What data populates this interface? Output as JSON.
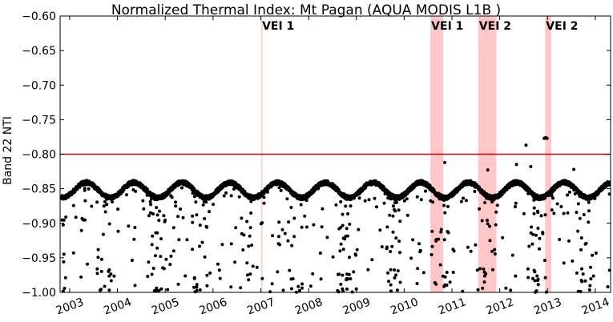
{
  "chart_data": {
    "type": "scatter",
    "title": "Normalized Thermal Index: Mt Pagan (AQUA MODIS L1B )",
    "xlabel": "",
    "ylabel": "Band 22 NTI",
    "xlim": [
      2002.8,
      2014.32
    ],
    "ylim": [
      -1.0,
      -0.6
    ],
    "x_ticks": [
      2003,
      2004,
      2005,
      2006,
      2007,
      2008,
      2009,
      2010,
      2011,
      2012,
      2013,
      2014
    ],
    "x_tick_labels": [
      "2003",
      "2004",
      "2005",
      "2006",
      "2007",
      "2008",
      "2009",
      "2010",
      "2011",
      "2012",
      "2013",
      "2014"
    ],
    "y_ticks": [
      -1.0,
      -0.95,
      -0.9,
      -0.85,
      -0.8,
      -0.75,
      -0.7,
      -0.65,
      -0.6
    ],
    "y_tick_labels": [
      "−1.00",
      "−0.95",
      "−0.90",
      "−0.85",
      "−0.80",
      "−0.75",
      "−0.70",
      "−0.65",
      "−0.60"
    ],
    "threshold": {
      "value": -0.8,
      "color": "#cc0000"
    },
    "eruptions": [
      {
        "label": "VEI 1",
        "start": 2007.01,
        "end": 2007.03
      },
      {
        "label": "VEI 1",
        "start": 2010.55,
        "end": 2010.82
      },
      {
        "label": "VEI 2",
        "start": 2011.55,
        "end": 2011.93
      },
      {
        "label": "VEI 2",
        "start": 2012.95,
        "end": 2013.08
      }
    ],
    "eruption_color": "#ff9999",
    "marker_color": "#000000",
    "baseline": {
      "description_values": "background NTI oscillates seasonally between about -0.840 and -0.865 (annual cycle)",
      "mean": -0.852,
      "amplitude": 0.011,
      "peak_phase": 0.35
    },
    "anomalies": [
      {
        "x": 2012.55,
        "y": -0.787
      },
      {
        "x": 2012.93,
        "y": -0.777
      },
      {
        "x": 2012.96,
        "y": -0.776
      },
      {
        "x": 2012.99,
        "y": -0.777
      },
      {
        "x": 2012.35,
        "y": -0.815
      },
      {
        "x": 2012.65,
        "y": -0.818
      },
      {
        "x": 2010.85,
        "y": -0.812
      },
      {
        "x": 2011.75,
        "y": -0.823
      },
      {
        "x": 2013.55,
        "y": -0.822
      }
    ]
  }
}
